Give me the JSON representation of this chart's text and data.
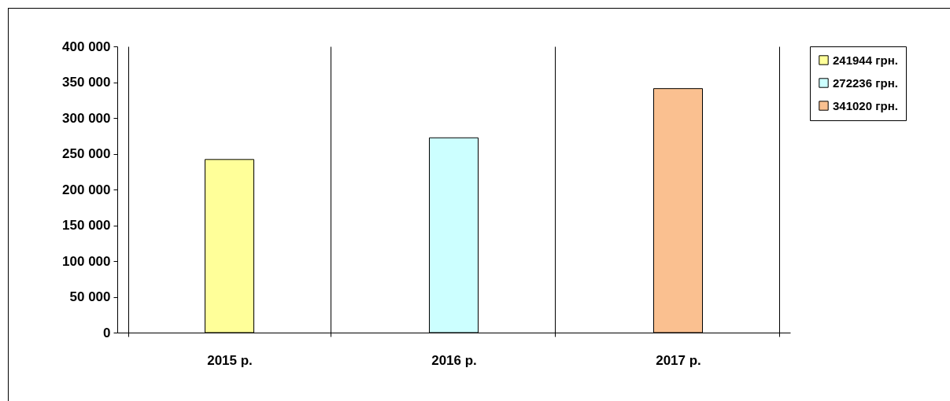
{
  "chart_data": {
    "type": "bar",
    "categories": [
      "2015 р.",
      "2016 р.",
      "2017 р."
    ],
    "series": [
      {
        "name": "241944 грн.",
        "color": "#ffff99",
        "values": [
          241944,
          null,
          null
        ]
      },
      {
        "name": "272236 грн.",
        "color": "#ccffff",
        "values": [
          null,
          272236,
          null
        ]
      },
      {
        "name": "341020 грн.",
        "color": "#fac090",
        "values": [
          null,
          null,
          341020
        ]
      }
    ],
    "ylim": [
      0,
      400000
    ],
    "yticks": [
      0,
      {
        "value": 50000,
        "label": "50 000"
      },
      {
        "value": 100000,
        "label": "100 000"
      },
      {
        "value": 150000,
        "label": "150 000"
      },
      {
        "value": 200000,
        "label": "200 000"
      },
      {
        "value": 250000,
        "label": "250 000"
      },
      {
        "value": 300000,
        "label": "300 000"
      },
      {
        "value": 350000,
        "label": "350 000"
      },
      {
        "value": 400000,
        "label": "400 000"
      }
    ],
    "grid": "x",
    "legend": "right"
  }
}
